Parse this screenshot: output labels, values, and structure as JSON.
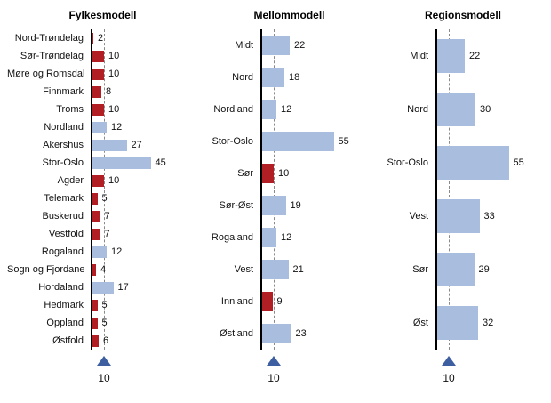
{
  "colors": {
    "bar_blue": "#a9bede",
    "bar_red": "#b11f24",
    "axis": "#000000",
    "dashed_line": "#8a8a8a",
    "triangle": "#3d5fa1",
    "background": "#ffffff"
  },
  "chart_data": [
    {
      "type": "bar",
      "orientation": "horizontal",
      "title": "Fylkesmodell",
      "reference_line": 10,
      "reference_label": "10",
      "xlim": [
        0,
        60
      ],
      "grid": false,
      "categories": [
        "Nord-Trøndelag",
        "Sør-Trøndelag",
        "Møre og Romsdal",
        "Finnmark",
        "Troms",
        "Nordland",
        "Akershus",
        "Stor-Oslo",
        "Agder",
        "Telemark",
        "Buskerud",
        "Vestfold",
        "Rogaland",
        "Sogn og Fjordane",
        "Hordaland",
        "Hedmark",
        "Oppland",
        "Østfold"
      ],
      "values": [
        2,
        10,
        10,
        8,
        10,
        12,
        27,
        45,
        10,
        5,
        7,
        7,
        12,
        4,
        17,
        5,
        5,
        6
      ],
      "bar_colors": [
        "red",
        "red",
        "red",
        "red",
        "red",
        "blue",
        "blue",
        "blue",
        "red",
        "red",
        "red",
        "red",
        "blue",
        "red",
        "blue",
        "red",
        "red",
        "red"
      ]
    },
    {
      "type": "bar",
      "orientation": "horizontal",
      "title": "Mellommodell",
      "reference_line": 10,
      "reference_label": "10",
      "xlim": [
        0,
        60
      ],
      "grid": false,
      "categories": [
        "Midt",
        "Nord",
        "Nordland",
        "Stor-Oslo",
        "Sør",
        "Sør-Øst",
        "Rogaland",
        "Vest",
        "Innland",
        "Østland"
      ],
      "values": [
        22,
        18,
        12,
        55,
        10,
        19,
        12,
        21,
        9,
        23
      ],
      "bar_colors": [
        "blue",
        "blue",
        "blue",
        "blue",
        "red",
        "blue",
        "blue",
        "blue",
        "red",
        "blue"
      ]
    },
    {
      "type": "bar",
      "orientation": "horizontal",
      "title": "Regionsmodell",
      "reference_line": 10,
      "reference_label": "10",
      "xlim": [
        0,
        60
      ],
      "grid": false,
      "categories": [
        "Midt",
        "Nord",
        "Stor-Oslo",
        "Vest",
        "Sør",
        "Øst"
      ],
      "values": [
        22,
        30,
        55,
        33,
        29,
        32
      ],
      "bar_colors": [
        "blue",
        "blue",
        "blue",
        "blue",
        "blue",
        "blue"
      ]
    }
  ]
}
